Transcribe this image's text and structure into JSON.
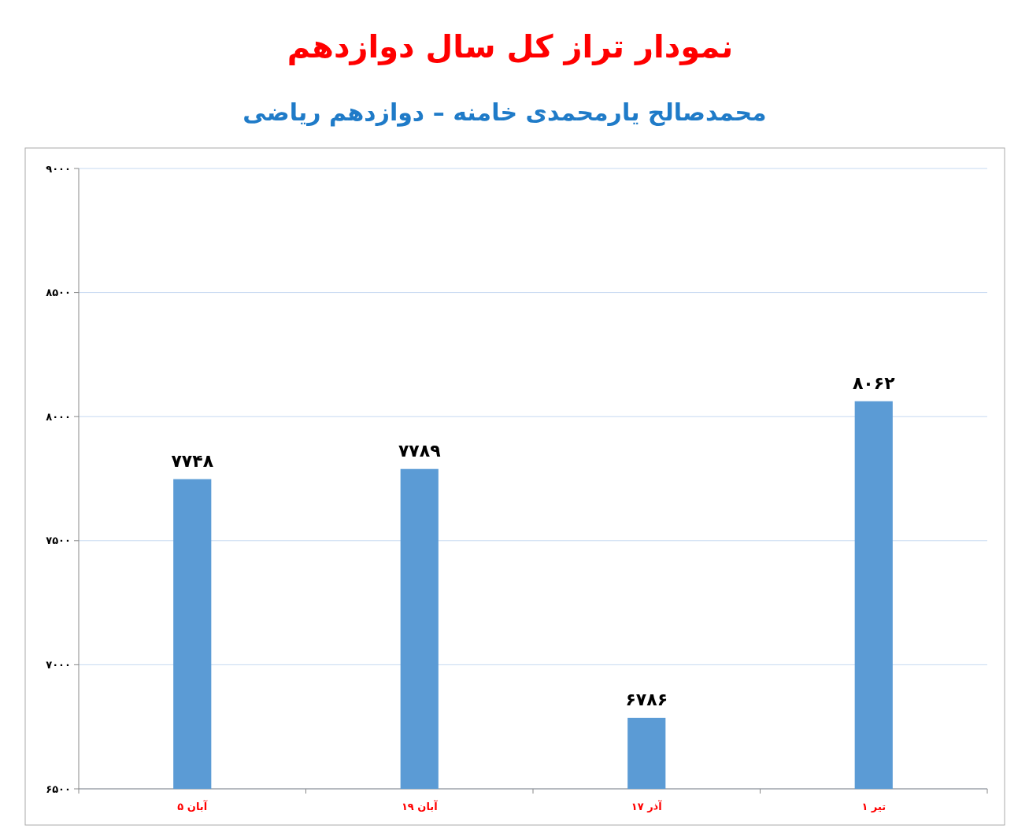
{
  "chart_data": {
    "type": "bar",
    "title": "نمودار تراز کل سال دوازدهم",
    "subtitle": "محمدصالح یارمحمدی خامنه – دوازدهم ریاضی",
    "categories": [
      "۵ آبان",
      "۱۹ آبان",
      "۱۷ آذر",
      "۱ تیر"
    ],
    "values": [
      7748,
      7789,
      6786,
      8062
    ],
    "color": "#5b9bd5",
    "value_labels": [
      "۷۷۴۸",
      "۷۷۸۹",
      "۶۷۸۶",
      "۸۰۶۲"
    ],
    "ylim": [
      6500,
      9000
    ],
    "yticks": [
      {
        "value": 6500,
        "label": "۶۵۰۰"
      },
      {
        "value": 7000,
        "label": "۷۰۰۰"
      },
      {
        "value": 7500,
        "label": "۷۵۰۰"
      },
      {
        "value": 8000,
        "label": "۸۰۰۰"
      },
      {
        "value": 8500,
        "label": "۸۵۰۰"
      },
      {
        "value": 9000,
        "label": "۹۰۰۰"
      }
    ],
    "grid": "y"
  }
}
